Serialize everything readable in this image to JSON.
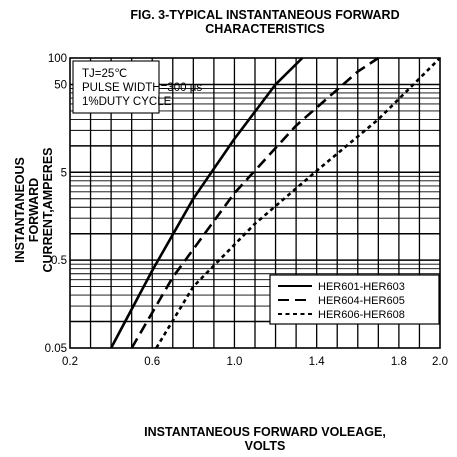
{
  "chart_data": {
    "type": "line",
    "title": [
      "FIG. 3-TYPICAL INSTANTANEOUS FORWARD",
      "CHARACTERISTICS"
    ],
    "xlabel": [
      "INSTANTANEOUS FORWARD VOLEAGE,",
      "VOLTS"
    ],
    "ylabel": [
      "INSTANTANEOUS FORWARD",
      "CURRENT,AMPERES"
    ],
    "xlim": [
      0.2,
      2.0
    ],
    "ylim": [
      0.05,
      100
    ],
    "yscale": "log",
    "x_ticks": [
      "0.2",
      "0.6",
      "1.0",
      "1.4",
      "1.8",
      "2.0"
    ],
    "x_tick_values": [
      0.2,
      0.6,
      1.0,
      1.4,
      1.8,
      2.0
    ],
    "y_ticks": [
      "100",
      "50",
      "5",
      "0.5",
      "0.05"
    ],
    "y_tick_values": [
      100,
      50,
      5,
      0.5,
      0.05
    ],
    "grid": true,
    "conditions": [
      "TJ=25℃",
      "PULSE WIDTH=300 μs",
      "1%DUTY CYCLE"
    ],
    "legend_position": "bottom-right",
    "series": [
      {
        "name": "HER601-HER603",
        "style": "solid",
        "x": [
          0.4,
          0.6,
          0.8,
          1.0,
          1.2,
          1.33
        ],
        "y": [
          0.05,
          0.38,
          2.5,
          12,
          50,
          100
        ]
      },
      {
        "name": "HER604-HER605",
        "style": "dashed",
        "x": [
          0.5,
          0.7,
          1.0,
          1.3,
          1.6,
          1.7
        ],
        "y": [
          0.05,
          0.32,
          2.9,
          17,
          70,
          100
        ]
      },
      {
        "name": "HER606-HER608",
        "style": "dotted",
        "x": [
          0.62,
          0.8,
          1.1,
          1.4,
          1.7,
          2.0
        ],
        "y": [
          0.05,
          0.25,
          1.3,
          5.2,
          20,
          100
        ]
      }
    ]
  }
}
